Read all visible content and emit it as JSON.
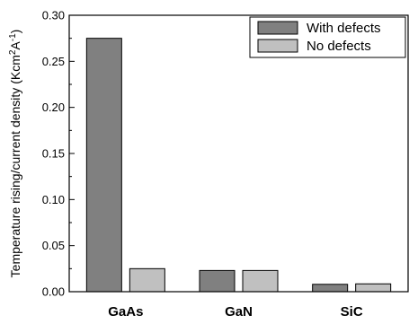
{
  "chart_data": {
    "type": "bar",
    "title": "",
    "xlabel": "",
    "ylabel": "Temperature rising/current density (Kcm2A-1)",
    "ylabel_parts": {
      "main": "Temperature rising/current density (Kcm",
      "sup1": "2",
      "mid": "A",
      "sup2": "-1",
      "end": ")"
    },
    "categories": [
      "GaAs",
      "GaN",
      "SiC"
    ],
    "series": [
      {
        "name": "With defects",
        "color": "#808080",
        "values": [
          0.275,
          0.023,
          0.008
        ]
      },
      {
        "name": "No defects",
        "color": "#c0c0c0",
        "values": [
          0.025,
          0.023,
          0.0085
        ]
      }
    ],
    "ylim": [
      0,
      0.3
    ],
    "yticks": [
      "0.00",
      "0.05",
      "0.10",
      "0.15",
      "0.20",
      "0.25",
      "0.30"
    ],
    "legend_position": "top-right",
    "grid": false
  }
}
